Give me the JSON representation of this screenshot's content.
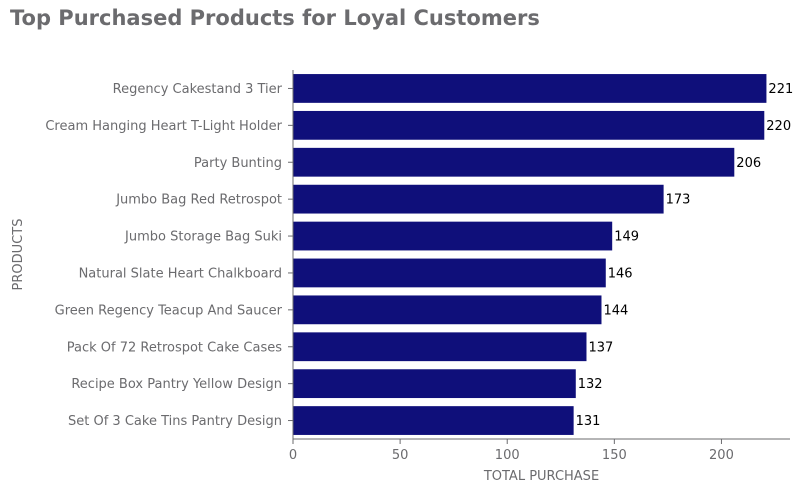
{
  "chart_data": {
    "type": "bar",
    "orientation": "horizontal",
    "title": "Top Purchased Products for Loyal Customers",
    "xlabel": "TOTAL PURCHASE",
    "ylabel": "PRODUCTS",
    "categories": [
      "Regency Cakestand 3 Tier",
      "Cream Hanging Heart T-Light Holder",
      "Party Bunting",
      "Jumbo Bag Red Retrospot",
      "Jumbo Storage Bag Suki",
      "Natural Slate Heart Chalkboard",
      "Green Regency Teacup And Saucer",
      "Pack Of 72 Retrospot Cake Cases",
      "Recipe Box Pantry Yellow Design",
      "Set Of 3 Cake Tins Pantry Design"
    ],
    "values": [
      221,
      220,
      206,
      173,
      149,
      146,
      144,
      137,
      132,
      131
    ],
    "value_labels": [
      "221",
      "220",
      "206",
      "173",
      "149",
      "146",
      "144",
      "137",
      "132",
      "131"
    ],
    "xticks": [
      0,
      50,
      100,
      150,
      200
    ],
    "xtick_labels": [
      "0",
      "50",
      "100",
      "150",
      "200"
    ],
    "xlim": [
      0,
      232
    ],
    "grid": false,
    "legend": "none",
    "colors": {
      "bar": "#0f0f7a",
      "text": "#6b6b6e",
      "axis": "#6b6b6e",
      "value_label": "#000000"
    }
  }
}
